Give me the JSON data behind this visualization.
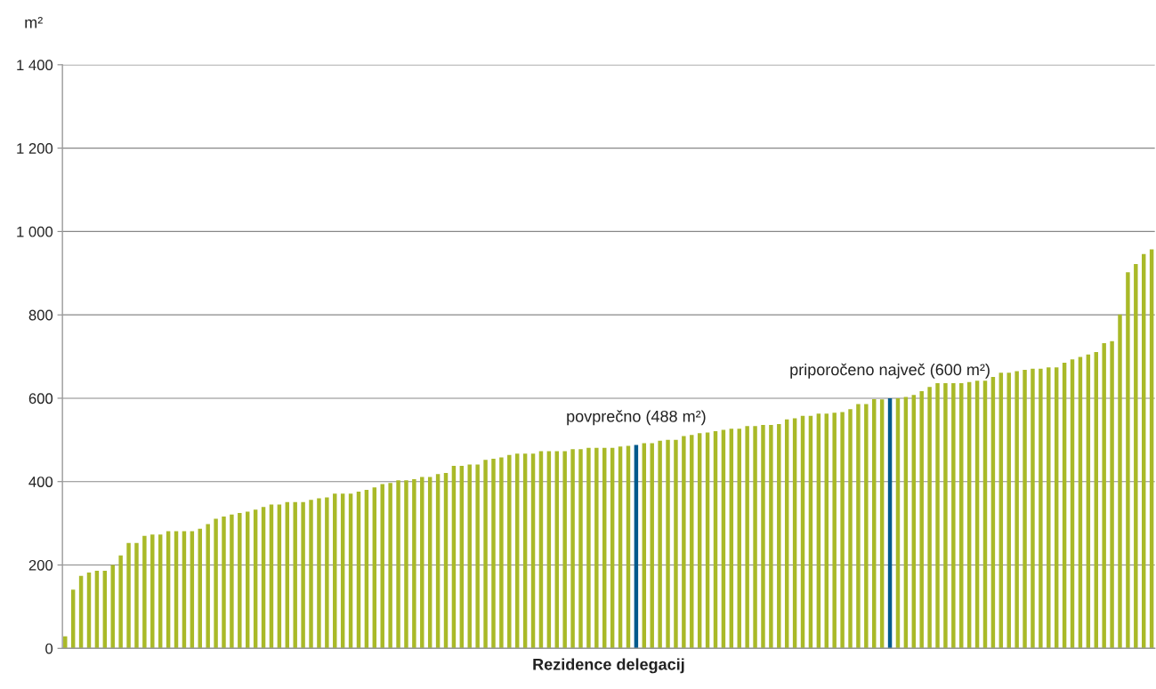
{
  "chart_data": {
    "type": "bar",
    "xlabel": "Rezidence delegacij",
    "ylabel": "m²",
    "categories": [
      null,
      null,
      null,
      null,
      null,
      null,
      null,
      null,
      null,
      null,
      null,
      null,
      null,
      null,
      null,
      null,
      null,
      null,
      null,
      null,
      null,
      null,
      null,
      null,
      null,
      null,
      null,
      null,
      null,
      null,
      null,
      null,
      null,
      null,
      null,
      null,
      null,
      null,
      null,
      null,
      null,
      null,
      null,
      null,
      null,
      null,
      null,
      null,
      null,
      null,
      null,
      null,
      null,
      null,
      null,
      null,
      null,
      null,
      null,
      null,
      null,
      null,
      null,
      null,
      null,
      null,
      null,
      null,
      null,
      null,
      null,
      null,
      null,
      null,
      null,
      null,
      null,
      null,
      null,
      null,
      null,
      null,
      null,
      null,
      null,
      null,
      null,
      null,
      null,
      null,
      null,
      null,
      null,
      null,
      null,
      null,
      null,
      null,
      null,
      null,
      null,
      null,
      null,
      null,
      null,
      null,
      null,
      null,
      null,
      null,
      null,
      null,
      null,
      null,
      null,
      null,
      null,
      null,
      null,
      null,
      null,
      null,
      null,
      null,
      null,
      null,
      null,
      null,
      null,
      null,
      null,
      null,
      null,
      null,
      null,
      null,
      null,
      null
    ],
    "values": [
      29,
      141,
      174,
      182,
      186,
      186,
      200,
      223,
      253,
      253,
      270,
      273,
      273,
      281,
      281,
      281,
      281,
      287,
      298,
      311,
      316,
      321,
      325,
      328,
      333,
      339,
      345,
      345,
      351,
      351,
      351,
      356,
      360,
      362,
      371,
      371,
      371,
      376,
      380,
      386,
      394,
      397,
      403,
      403,
      406,
      411,
      411,
      418,
      421,
      438,
      438,
      441,
      441,
      452,
      455,
      458,
      464,
      467,
      467,
      467,
      473,
      473,
      473,
      473,
      478,
      478,
      481,
      481,
      481,
      481,
      484,
      486,
      488,
      492,
      492,
      498,
      500,
      500,
      509,
      512,
      516,
      518,
      521,
      524,
      527,
      527,
      533,
      533,
      536,
      536,
      538,
      549,
      552,
      558,
      558,
      563,
      563,
      565,
      567,
      574,
      586,
      586,
      598,
      597,
      600,
      600,
      603,
      608,
      617,
      627,
      636,
      636,
      636,
      636,
      639,
      642,
      642,
      651,
      661,
      661,
      665,
      668,
      671,
      671,
      674,
      674,
      685,
      693,
      699,
      705,
      711,
      732,
      737,
      801,
      902,
      922,
      946,
      957
    ],
    "colors": [
      "#a9b928",
      "#a9b928",
      "#a9b928",
      "#a9b928",
      "#a9b928",
      "#a9b928",
      "#a9b928",
      "#a9b928",
      "#a9b928",
      "#a9b928",
      "#a9b928",
      "#a9b928",
      "#a9b928",
      "#a9b928",
      "#a9b928",
      "#a9b928",
      "#a9b928",
      "#a9b928",
      "#a9b928",
      "#a9b928",
      "#a9b928",
      "#a9b928",
      "#a9b928",
      "#a9b928",
      "#a9b928",
      "#a9b928",
      "#a9b928",
      "#a9b928",
      "#a9b928",
      "#a9b928",
      "#a9b928",
      "#a9b928",
      "#a9b928",
      "#a9b928",
      "#a9b928",
      "#a9b928",
      "#a9b928",
      "#a9b928",
      "#a9b928",
      "#a9b928",
      "#a9b928",
      "#a9b928",
      "#a9b928",
      "#a9b928",
      "#a9b928",
      "#a9b928",
      "#a9b928",
      "#a9b928",
      "#a9b928",
      "#a9b928",
      "#a9b928",
      "#a9b928",
      "#a9b928",
      "#a9b928",
      "#a9b928",
      "#a9b928",
      "#a9b928",
      "#a9b928",
      "#a9b928",
      "#a9b928",
      "#a9b928",
      "#a9b928",
      "#a9b928",
      "#a9b928",
      "#a9b928",
      "#a9b928",
      "#a9b928",
      "#a9b928",
      "#a9b928",
      "#a9b928",
      "#a9b928",
      "#a9b928",
      "#005a8c",
      "#a9b928",
      "#a9b928",
      "#a9b928",
      "#a9b928",
      "#a9b928",
      "#a9b928",
      "#a9b928",
      "#a9b928",
      "#a9b928",
      "#a9b928",
      "#a9b928",
      "#a9b928",
      "#a9b928",
      "#a9b928",
      "#a9b928",
      "#a9b928",
      "#a9b928",
      "#a9b928",
      "#a9b928",
      "#a9b928",
      "#a9b928",
      "#a9b928",
      "#a9b928",
      "#a9b928",
      "#a9b928",
      "#a9b928",
      "#a9b928",
      "#a9b928",
      "#a9b928",
      "#a9b928",
      "#a9b928",
      "#005a8c",
      "#a9b928",
      "#a9b928",
      "#a9b928",
      "#a9b928",
      "#a9b928",
      "#a9b928",
      "#a9b928",
      "#a9b928",
      "#a9b928",
      "#a9b928",
      "#a9b928",
      "#a9b928",
      "#a9b928",
      "#a9b928",
      "#a9b928",
      "#a9b928",
      "#a9b928",
      "#a9b928",
      "#a9b928",
      "#a9b928",
      "#a9b928",
      "#a9b928",
      "#a9b928",
      "#a9b928",
      "#a9b928",
      "#a9b928",
      "#a9b928",
      "#a9b928",
      "#a9b928",
      "#a9b928",
      "#a9b928",
      "#a9b928",
      "#a9b928"
    ],
    "value_labels": [
      null,
      null,
      null,
      null,
      null,
      null,
      null,
      null,
      null,
      null,
      null,
      null,
      null,
      null,
      null,
      null,
      null,
      null,
      null,
      null,
      null,
      null,
      null,
      null,
      null,
      null,
      null,
      null,
      null,
      null,
      null,
      null,
      null,
      null,
      null,
      null,
      null,
      null,
      null,
      null,
      null,
      null,
      null,
      null,
      null,
      null,
      null,
      null,
      null,
      null,
      null,
      null,
      null,
      null,
      null,
      null,
      null,
      null,
      null,
      null,
      null,
      null,
      null,
      null,
      null,
      null,
      null,
      null,
      null,
      null,
      null,
      null,
      "povprečno (488 m²)",
      null,
      null,
      null,
      null,
      null,
      null,
      null,
      null,
      null,
      null,
      null,
      null,
      null,
      null,
      null,
      null,
      null,
      null,
      null,
      null,
      null,
      null,
      null,
      null,
      null,
      null,
      null,
      null,
      null,
      null,
      null,
      "priporočeno največ (600 m²)",
      null,
      null,
      null,
      null,
      null,
      null,
      null,
      null,
      null,
      null,
      null,
      null,
      null,
      null,
      null,
      null,
      null,
      null,
      null,
      null,
      null,
      null,
      null,
      null,
      null,
      null,
      null,
      null,
      null,
      null,
      null,
      null,
      null
    ],
    "ylim": [
      0,
      1400
    ],
    "yticks": [
      0,
      200,
      400,
      600,
      800,
      {
        "value": 1000,
        "label": "1 000"
      },
      {
        "value": 1200,
        "label": "1 200"
      },
      {
        "value": 1400,
        "label": "1 400"
      }
    ],
    "grid": "y",
    "tick_labels": "y"
  }
}
